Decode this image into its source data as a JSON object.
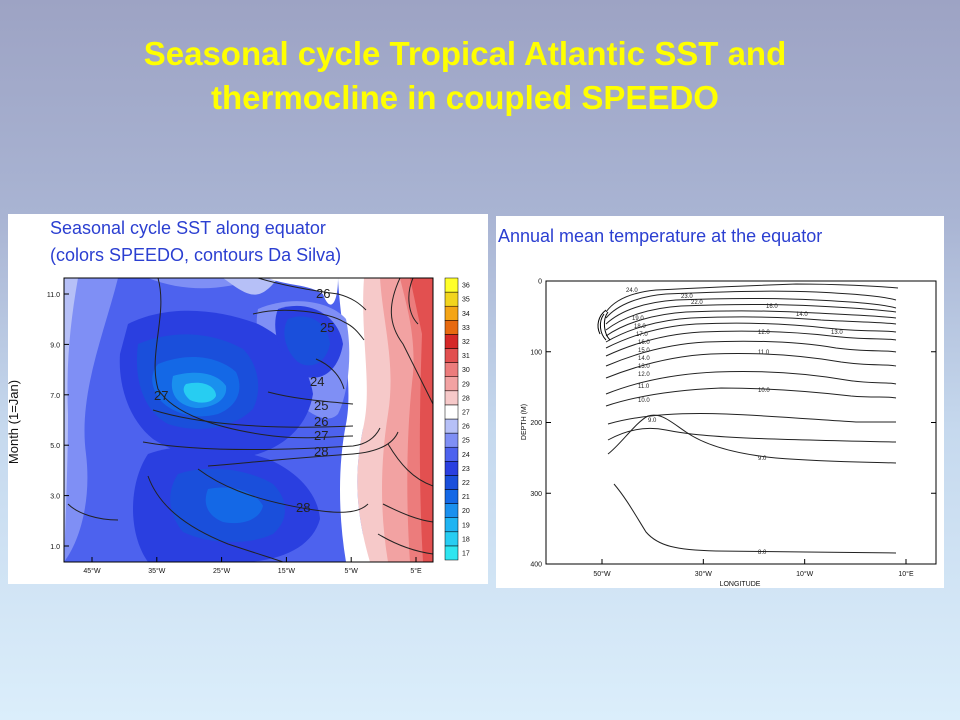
{
  "slide_title_line1": "Seasonal cycle Tropical Atlantic SST and",
  "slide_title_line2": "thermocline in coupled SPEEDO",
  "colors": {
    "title": "#ffff00",
    "caption": "#2b3fd1"
  },
  "chart_data": [
    {
      "type": "heatmap",
      "caption_line1": "Seasonal cycle SST along equator",
      "caption_line2": "(colors SPEEDO, contours Da Silva)",
      "ylabel": "Month (1=Jan)",
      "x_ticks": [
        "45°W",
        "35°W",
        "25°W",
        "15°W",
        "5°W",
        "5°E"
      ],
      "y_ticks": [
        "1.0",
        "3.0",
        "5.0",
        "7.0",
        "9.0",
        "11.0"
      ],
      "colorbar_labels": [
        "17",
        "18",
        "19",
        "20",
        "21",
        "22",
        "23",
        "24",
        "25",
        "26",
        "27",
        "28",
        "29",
        "30",
        "31",
        "32",
        "33",
        "34",
        "35",
        "36"
      ],
      "colorbar_colors": [
        "#2ee5f0",
        "#27cdf2",
        "#1fb4f2",
        "#1a90ee",
        "#1468e6",
        "#1a4fdb",
        "#2a3fe0",
        "#4d62ee",
        "#7f8ff5",
        "#b6c0f7",
        "#ffffff",
        "#f6c9c9",
        "#f2a2a2",
        "#ec7c7c",
        "#e25050",
        "#d52828",
        "#e76a10",
        "#f4a516",
        "#f2d51e",
        "#ffff2a"
      ],
      "contour_labels": [
        "26",
        "25",
        "24",
        "25",
        "26",
        "27",
        "28",
        "27",
        "28"
      ]
    },
    {
      "type": "contour",
      "caption": "Annual mean temperature at the equator",
      "xlabel": "LONGITUDE",
      "ylabel": "DEPTH (M)",
      "x_ticks": [
        "50°W",
        "30°W",
        "10°W",
        "10°E"
      ],
      "y_ticks": [
        "0",
        "100",
        "200",
        "300",
        "400"
      ],
      "contour_labels": [
        "24.0",
        "23.0",
        "22.0",
        "16.0",
        "14.0",
        "13.0",
        "12.0",
        "11.0",
        "10.0",
        "9.0",
        "8.0"
      ],
      "contour_labels_left": [
        "19.0",
        "18.0",
        "17.0",
        "16.0",
        "15.0",
        "14.0",
        "13.0",
        "12.0",
        "11.0",
        "10.0",
        "9.0"
      ]
    }
  ]
}
